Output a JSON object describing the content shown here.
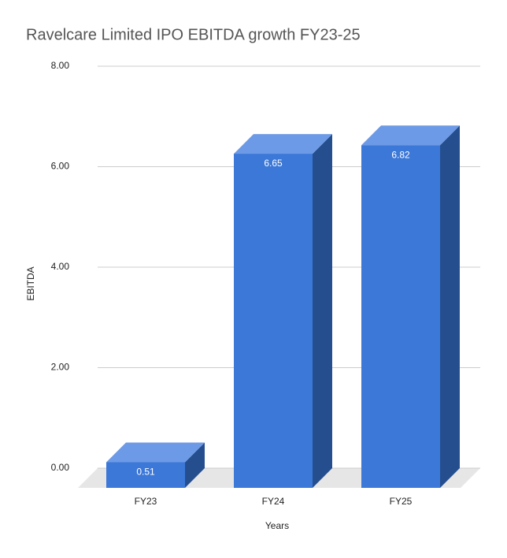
{
  "chart_data": {
    "type": "bar3d",
    "title": "Ravelcare Limited IPO EBITDA growth FY23-25",
    "x_label": "Years",
    "y_label": "EBITDA",
    "categories": [
      "FY23",
      "FY24",
      "FY25"
    ],
    "values": [
      0.51,
      6.65,
      6.82
    ],
    "color": "#3c78d8",
    "ylim": [
      0,
      8
    ],
    "yticks": [
      {
        "value": 0,
        "label": "0.00"
      },
      {
        "value": 2,
        "label": "2.00"
      },
      {
        "value": 4,
        "label": "4.00"
      },
      {
        "value": 6,
        "label": "6.00"
      },
      {
        "value": 8,
        "label": "8.00"
      }
    ],
    "grid": true
  }
}
